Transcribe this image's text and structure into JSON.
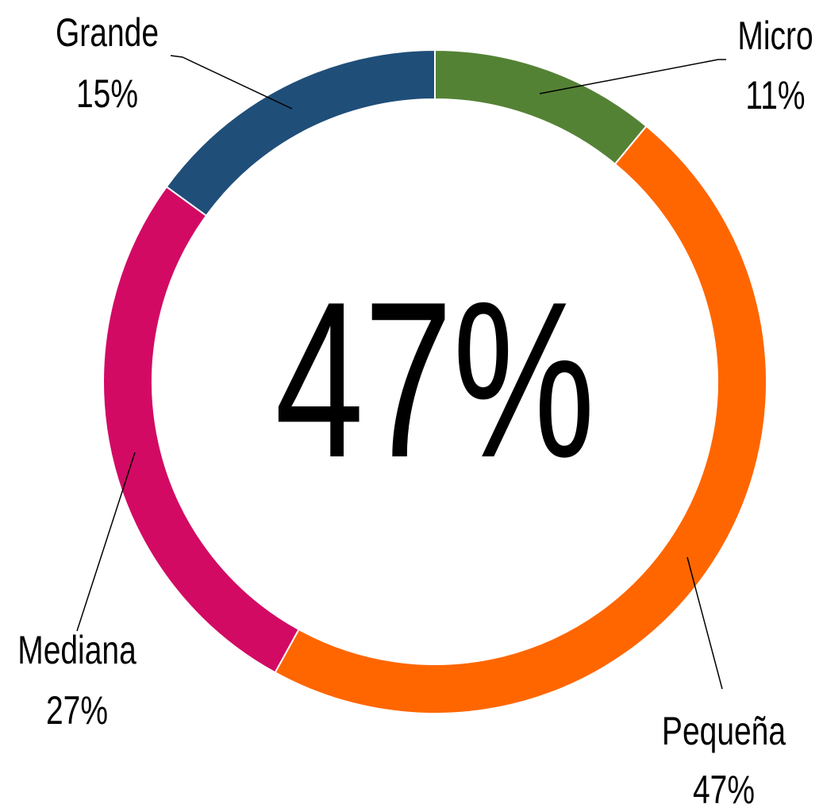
{
  "chart_data": {
    "type": "donut",
    "categories": [
      "Micro",
      "Pequeña",
      "Mediana",
      "Grande"
    ],
    "values": [
      11,
      47,
      27,
      15
    ],
    "value_labels": [
      "11%",
      "47%",
      "27%",
      "15%"
    ],
    "colors": [
      "#548235",
      "#ff6600",
      "#d20a64",
      "#1f4e79"
    ],
    "center_label": "47%"
  }
}
